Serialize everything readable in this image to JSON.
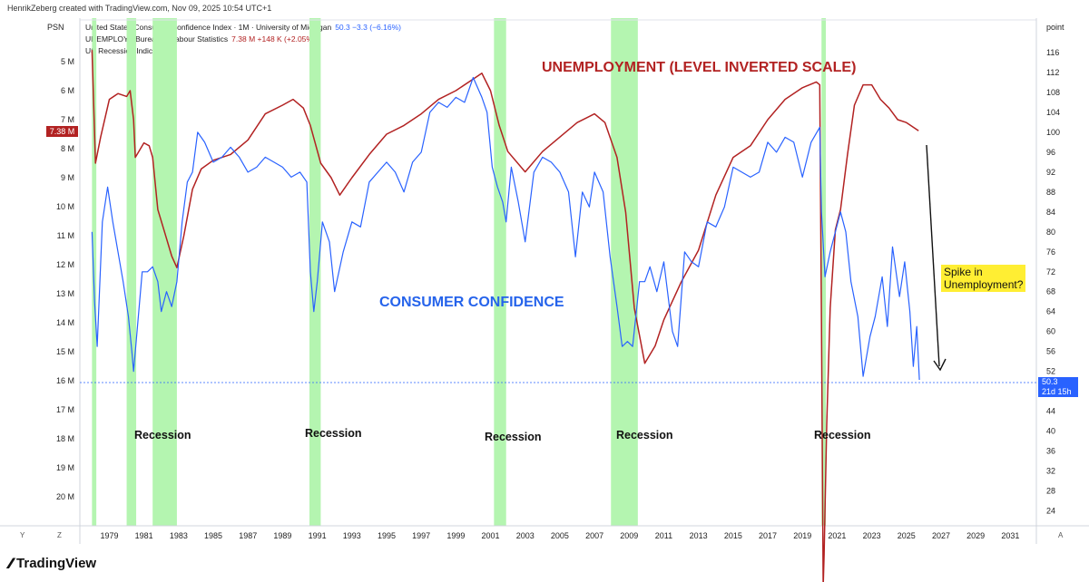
{
  "header": {
    "credit": "HenrikZeberg created with TradingView.com, Nov 09, 2025 10:54 UTC+1",
    "left_scale_label": "PSN",
    "right_scale_label": "point"
  },
  "legend": {
    "series1_name": "United States Consumer Confidence Index · 1M · University of Michigan",
    "series1_value": "50.3  −3.3 (−6.16%)",
    "series2_name": "UNEMPLOY · Bureau of Labour Statistics",
    "series2_value": "7.38 M  +148 K (+2.05%)",
    "series3_name": "US Recession Indicator"
  },
  "badges": {
    "left_value": "7.38 M",
    "right_value": "50.3",
    "right_sub": "21d 15h"
  },
  "annotations": {
    "unemployment_title": "UNEMPLOYMENT (LEVEL INVERTED SCALE)",
    "consumer_title": "CONSUMER CONFIDENCE",
    "spike_line1": "Spike in",
    "spike_line2": "Unemployment?",
    "recession_label": "Recession"
  },
  "corners": {
    "bottom_left_y": "Y",
    "bottom_left_z": "Z",
    "bottom_right_a": "A"
  },
  "brand": {
    "logo_text": "TradingView"
  },
  "colors": {
    "unemployment": "#b22222",
    "consumer": "#2962ff",
    "recession": "#b4f5b0",
    "spike_box": "#ffee33"
  },
  "chart_data": {
    "type": "line",
    "title": "UNEMPLOYMENT (LEVEL INVERTED SCALE) vs CONSUMER CONFIDENCE",
    "x_range": [
      1977.3,
      2032.5
    ],
    "x_ticks": [
      1979,
      1981,
      1983,
      1985,
      1987,
      1989,
      1991,
      1993,
      1995,
      1997,
      1999,
      2001,
      2003,
      2005,
      2007,
      2009,
      2011,
      2013,
      2015,
      2017,
      2019,
      2021,
      2023,
      2025,
      2027,
      2029,
      2031
    ],
    "left_axis": {
      "label": "PSN",
      "unit": "M",
      "inverted": true,
      "range": [
        4.0,
        21.0
      ],
      "ticks": [
        5,
        6,
        7,
        8,
        9,
        10,
        11,
        12,
        13,
        14,
        15,
        16,
        17,
        18,
        19,
        20
      ]
    },
    "right_axis": {
      "label": "point",
      "range": [
        21.0,
        120.0
      ],
      "ticks": [
        24,
        28,
        32,
        36,
        40,
        44,
        48,
        52,
        56,
        60,
        64,
        68,
        72,
        76,
        80,
        84,
        88,
        92,
        96,
        100,
        104,
        108,
        112,
        116
      ]
    },
    "recessions": [
      [
        1978.0,
        1978.25
      ],
      [
        1980.0,
        1980.55
      ],
      [
        1981.5,
        1982.9
      ],
      [
        1990.55,
        1991.2
      ],
      [
        2001.2,
        2001.9
      ],
      [
        2007.95,
        2009.5
      ],
      [
        2020.1,
        2020.35
      ]
    ],
    "series": [
      {
        "name": "UNEMPLOY · Bureau of Labour Statistics",
        "axis": "left",
        "color": "#b22222",
        "points": [
          [
            1978.0,
            4.6
          ],
          [
            1978.2,
            8.5
          ],
          [
            1978.5,
            7.6
          ],
          [
            1979.0,
            6.3
          ],
          [
            1979.5,
            6.1
          ],
          [
            1980.0,
            6.2
          ],
          [
            1980.2,
            6.0
          ],
          [
            1980.4,
            7.0
          ],
          [
            1980.5,
            8.3
          ],
          [
            1980.7,
            8.1
          ],
          [
            1981.0,
            7.8
          ],
          [
            1981.3,
            7.9
          ],
          [
            1981.5,
            8.3
          ],
          [
            1981.8,
            10.1
          ],
          [
            1982.2,
            10.9
          ],
          [
            1982.6,
            11.7
          ],
          [
            1982.9,
            12.1
          ],
          [
            1983.3,
            11.0
          ],
          [
            1983.8,
            9.4
          ],
          [
            1984.3,
            8.7
          ],
          [
            1985.0,
            8.4
          ],
          [
            1986.0,
            8.2
          ],
          [
            1987.0,
            7.7
          ],
          [
            1988.0,
            6.8
          ],
          [
            1989.0,
            6.5
          ],
          [
            1989.6,
            6.3
          ],
          [
            1990.2,
            6.6
          ],
          [
            1990.6,
            7.2
          ],
          [
            1991.2,
            8.5
          ],
          [
            1991.8,
            9.0
          ],
          [
            1992.3,
            9.6
          ],
          [
            1993.0,
            9.0
          ],
          [
            1994.0,
            8.2
          ],
          [
            1995.0,
            7.5
          ],
          [
            1996.0,
            7.2
          ],
          [
            1997.0,
            6.8
          ],
          [
            1998.0,
            6.3
          ],
          [
            1999.0,
            6.0
          ],
          [
            2000.0,
            5.6
          ],
          [
            2000.5,
            5.4
          ],
          [
            2001.0,
            6.0
          ],
          [
            2001.5,
            7.2
          ],
          [
            2002.0,
            8.1
          ],
          [
            2003.0,
            8.8
          ],
          [
            2004.0,
            8.1
          ],
          [
            2005.0,
            7.6
          ],
          [
            2006.0,
            7.1
          ],
          [
            2007.0,
            6.8
          ],
          [
            2007.6,
            7.1
          ],
          [
            2008.3,
            8.3
          ],
          [
            2008.8,
            10.2
          ],
          [
            2009.3,
            13.5
          ],
          [
            2009.9,
            15.4
          ],
          [
            2010.5,
            14.8
          ],
          [
            2011.0,
            13.9
          ],
          [
            2012.0,
            12.6
          ],
          [
            2013.0,
            11.5
          ],
          [
            2014.0,
            9.6
          ],
          [
            2015.0,
            8.3
          ],
          [
            2016.0,
            7.9
          ],
          [
            2017.0,
            7.0
          ],
          [
            2018.0,
            6.3
          ],
          [
            2019.0,
            5.9
          ],
          [
            2019.8,
            5.7
          ],
          [
            2020.0,
            5.8
          ],
          [
            2020.1,
            14.0
          ],
          [
            2020.2,
            23.1
          ],
          [
            2020.25,
            22.0
          ],
          [
            2020.4,
            17.5
          ],
          [
            2020.6,
            13.5
          ],
          [
            2020.9,
            10.8
          ],
          [
            2021.2,
            10.1
          ],
          [
            2021.6,
            8.2
          ],
          [
            2022.0,
            6.5
          ],
          [
            2022.5,
            5.8
          ],
          [
            2023.0,
            5.8
          ],
          [
            2023.5,
            6.3
          ],
          [
            2024.0,
            6.6
          ],
          [
            2024.5,
            7.0
          ],
          [
            2025.0,
            7.1
          ],
          [
            2025.5,
            7.3
          ],
          [
            2025.7,
            7.38
          ]
        ]
      },
      {
        "name": "United States Consumer Confidence Index · 1M · University of Michigan",
        "axis": "right",
        "color": "#2962ff",
        "points": [
          [
            1978.0,
            80
          ],
          [
            1978.15,
            66
          ],
          [
            1978.3,
            57
          ],
          [
            1978.6,
            82
          ],
          [
            1978.9,
            89
          ],
          [
            1979.2,
            82
          ],
          [
            1979.5,
            76
          ],
          [
            1979.8,
            70
          ],
          [
            1980.1,
            63
          ],
          [
            1980.3,
            56
          ],
          [
            1980.4,
            52
          ],
          [
            1980.6,
            60
          ],
          [
            1980.9,
            72
          ],
          [
            1981.2,
            72
          ],
          [
            1981.5,
            73
          ],
          [
            1981.8,
            70
          ],
          [
            1982.0,
            64
          ],
          [
            1982.3,
            68
          ],
          [
            1982.6,
            65
          ],
          [
            1982.9,
            70
          ],
          [
            1983.2,
            82
          ],
          [
            1983.5,
            90
          ],
          [
            1983.8,
            92
          ],
          [
            1984.1,
            100
          ],
          [
            1984.5,
            98
          ],
          [
            1985.0,
            94
          ],
          [
            1985.5,
            95
          ],
          [
            1986.0,
            97
          ],
          [
            1986.5,
            95
          ],
          [
            1987.0,
            92
          ],
          [
            1987.5,
            93
          ],
          [
            1988.0,
            95
          ],
          [
            1988.5,
            94
          ],
          [
            1989.0,
            93
          ],
          [
            1989.5,
            91
          ],
          [
            1990.0,
            92
          ],
          [
            1990.4,
            90
          ],
          [
            1990.6,
            72
          ],
          [
            1990.8,
            64
          ],
          [
            1991.0,
            70
          ],
          [
            1991.3,
            82
          ],
          [
            1991.7,
            78
          ],
          [
            1992.0,
            68
          ],
          [
            1992.5,
            76
          ],
          [
            1993.0,
            82
          ],
          [
            1993.5,
            81
          ],
          [
            1994.0,
            90
          ],
          [
            1994.5,
            92
          ],
          [
            1995.0,
            94
          ],
          [
            1995.5,
            92
          ],
          [
            1996.0,
            88
          ],
          [
            1996.5,
            94
          ],
          [
            1997.0,
            96
          ],
          [
            1997.5,
            104
          ],
          [
            1998.0,
            106
          ],
          [
            1998.5,
            105
          ],
          [
            1999.0,
            107
          ],
          [
            1999.5,
            106
          ],
          [
            2000.0,
            111
          ],
          [
            2000.5,
            107
          ],
          [
            2000.8,
            104
          ],
          [
            2001.1,
            93
          ],
          [
            2001.4,
            89
          ],
          [
            2001.7,
            86
          ],
          [
            2001.9,
            82
          ],
          [
            2002.2,
            93
          ],
          [
            2002.6,
            86
          ],
          [
            2003.0,
            78
          ],
          [
            2003.5,
            92
          ],
          [
            2004.0,
            95
          ],
          [
            2004.5,
            94
          ],
          [
            2005.0,
            92
          ],
          [
            2005.5,
            88
          ],
          [
            2005.9,
            75
          ],
          [
            2006.3,
            88
          ],
          [
            2006.7,
            85
          ],
          [
            2007.0,
            92
          ],
          [
            2007.5,
            88
          ],
          [
            2007.9,
            75
          ],
          [
            2008.3,
            65
          ],
          [
            2008.6,
            57
          ],
          [
            2008.9,
            58
          ],
          [
            2009.2,
            57
          ],
          [
            2009.6,
            70
          ],
          [
            2009.9,
            70
          ],
          [
            2010.2,
            73
          ],
          [
            2010.6,
            68
          ],
          [
            2011.0,
            74
          ],
          [
            2011.5,
            60
          ],
          [
            2011.8,
            57
          ],
          [
            2012.2,
            76
          ],
          [
            2012.6,
            74
          ],
          [
            2013.0,
            73
          ],
          [
            2013.5,
            82
          ],
          [
            2014.0,
            81
          ],
          [
            2014.5,
            85
          ],
          [
            2015.0,
            93
          ],
          [
            2015.5,
            92
          ],
          [
            2016.0,
            91
          ],
          [
            2016.5,
            92
          ],
          [
            2017.0,
            98
          ],
          [
            2017.5,
            96
          ],
          [
            2018.0,
            99
          ],
          [
            2018.5,
            98
          ],
          [
            2019.0,
            91
          ],
          [
            2019.5,
            98
          ],
          [
            2020.0,
            101
          ],
          [
            2020.1,
            84
          ],
          [
            2020.3,
            71
          ],
          [
            2020.6,
            76
          ],
          [
            2020.9,
            80
          ],
          [
            2021.2,
            84
          ],
          [
            2021.5,
            80
          ],
          [
            2021.8,
            70
          ],
          [
            2022.2,
            63
          ],
          [
            2022.5,
            51
          ],
          [
            2022.9,
            59
          ],
          [
            2023.2,
            63
          ],
          [
            2023.6,
            71
          ],
          [
            2023.9,
            61
          ],
          [
            2024.2,
            77
          ],
          [
            2024.6,
            67
          ],
          [
            2024.9,
            74
          ],
          [
            2025.2,
            64
          ],
          [
            2025.4,
            53
          ],
          [
            2025.6,
            61
          ],
          [
            2025.75,
            50.3
          ]
        ]
      }
    ]
  }
}
